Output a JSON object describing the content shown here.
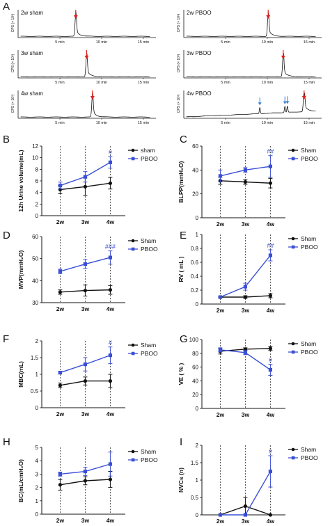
{
  "figure": {
    "panel_letters": [
      "A",
      "B",
      "C",
      "D",
      "E",
      "F",
      "G",
      "H",
      "I"
    ]
  },
  "colors": {
    "sham": "#111111",
    "pboo": "#3a4fd6",
    "annotation": "#3a4fd6",
    "red_arrow": "#e0201b",
    "blue_arrow": "#3a7fd0",
    "trace": "#111111"
  },
  "traces": {
    "x_ticks": [
      "5 min",
      "10 min",
      "15 min"
    ],
    "x_range": [
      0,
      16
    ],
    "y_axis_label": "CPS (× 10³)",
    "items": [
      {
        "label": "2w sham",
        "peak_min": 6.9,
        "red_arrow_min": 6.9,
        "blue_arrows_min": []
      },
      {
        "label": "2w PBOO",
        "peak_min": 10.1,
        "red_arrow_min": 10.1,
        "blue_arrows_min": []
      },
      {
        "label": "3w sham",
        "peak_min": 8.2,
        "red_arrow_min": 8.2,
        "blue_arrows_min": []
      },
      {
        "label": "3w PBOO",
        "peak_min": 11.9,
        "red_arrow_min": 11.9,
        "blue_arrows_min": []
      },
      {
        "label": "4w sham",
        "peak_min": 8.9,
        "red_arrow_min": 8.9,
        "blue_arrows_min": []
      },
      {
        "label": "4w PBOO",
        "peak_min": 14.4,
        "red_arrow_min": 14.4,
        "blue_arrows_min": [
          9.1,
          12.1,
          12.4
        ]
      }
    ]
  },
  "chart_data": [
    {
      "panel": "B",
      "type": "line",
      "ylabel": "12h Urine volume(mL)",
      "categories": [
        "2w",
        "3w",
        "4w"
      ],
      "ylim": [
        0,
        12
      ],
      "yticks": [
        0,
        2,
        4,
        6,
        8,
        10,
        12
      ],
      "legend": [
        "sham",
        "PBOO"
      ],
      "legend_position": "top-right",
      "series": [
        {
          "name": "sham",
          "values": [
            4.5,
            5.0,
            5.6
          ],
          "errors": [
            0.7,
            1.5,
            1.0
          ]
        },
        {
          "name": "PBOO",
          "values": [
            5.2,
            6.7,
            9.2
          ],
          "errors": [
            0.6,
            0.9,
            1.0
          ]
        }
      ],
      "annotation": {
        "text": "#",
        "category": "4w"
      }
    },
    {
      "panel": "C",
      "type": "line",
      "ylabel": "BLPP(mmH₂O)",
      "categories": [
        "2w",
        "3w",
        "4w"
      ],
      "ylim": [
        0,
        60
      ],
      "yticks": [
        0,
        20,
        40,
        60
      ],
      "legend": [
        "Sham",
        "PBOO"
      ],
      "legend_position": "top-right",
      "series": [
        {
          "name": "Sham",
          "values": [
            31,
            30,
            29
          ],
          "errors": [
            3,
            2,
            4
          ]
        },
        {
          "name": "PBOO",
          "values": [
            35,
            40,
            43
          ],
          "errors": [
            5,
            2,
            9
          ]
        }
      ],
      "annotation": {
        "text": "##",
        "category": "4w"
      }
    },
    {
      "panel": "D",
      "type": "line",
      "ylabel": "MVP(mmH₂O)",
      "categories": [
        "2w",
        "3w",
        "4w"
      ],
      "ylim": [
        30,
        60
      ],
      "yticks": [
        30,
        40,
        50,
        60
      ],
      "legend": [
        "Sham",
        "PBOO"
      ],
      "legend_position": "top-right",
      "series": [
        {
          "name": "Sham",
          "values": [
            34.8,
            35.5,
            35.8
          ],
          "errors": [
            1.0,
            2.5,
            2.0
          ]
        },
        {
          "name": "PBOO",
          "values": [
            44.2,
            47.5,
            50.5
          ],
          "errors": [
            1.0,
            2.0,
            3.0
          ]
        }
      ],
      "annotation": {
        "text": "###",
        "category": "4w"
      }
    },
    {
      "panel": "E",
      "type": "line",
      "ylabel": "RV ( mL )",
      "categories": [
        "2w",
        "3w",
        "4w"
      ],
      "ylim": [
        0,
        1.0
      ],
      "yticks": [
        0,
        0.2,
        0.4,
        0.6,
        0.8,
        1.0
      ],
      "legend": [
        "Sham",
        "PBOO"
      ],
      "legend_position": "top-right",
      "series": [
        {
          "name": "Sham",
          "values": [
            0.1,
            0.1,
            0.12
          ],
          "errors": [
            0.01,
            0.02,
            0.03
          ]
        },
        {
          "name": "PBOO",
          "values": [
            0.1,
            0.25,
            0.7
          ],
          "errors": [
            0.01,
            0.05,
            0.08
          ]
        }
      ],
      "annotation": {
        "text": "##",
        "category": "4w"
      }
    },
    {
      "panel": "F",
      "type": "line",
      "ylabel": "MBC(mL)",
      "categories": [
        "2w",
        "3w",
        "4w"
      ],
      "ylim": [
        0,
        2.0
      ],
      "yticks": [
        0,
        0.5,
        1.0,
        1.5,
        2.0
      ],
      "legend": [
        "Sham",
        "PBOO"
      ],
      "legend_position": "top-right",
      "series": [
        {
          "name": "Sham",
          "values": [
            0.67,
            0.8,
            0.8
          ],
          "errors": [
            0.07,
            0.12,
            0.2
          ]
        },
        {
          "name": "PBOO",
          "values": [
            1.05,
            1.3,
            1.57
          ],
          "errors": [
            0.04,
            0.2,
            0.25
          ]
        }
      ],
      "annotation": {
        "text": "#",
        "category": "4w"
      }
    },
    {
      "panel": "G",
      "type": "line",
      "ylabel": "VE ( % )",
      "categories": [
        "2w",
        "3w",
        "4w"
      ],
      "ylim": [
        0,
        100
      ],
      "yticks": [
        0,
        20,
        40,
        60,
        80,
        100
      ],
      "legend": [
        "Sham",
        "PBOO"
      ],
      "legend_position": "top-right",
      "series": [
        {
          "name": "Sham",
          "values": [
            83,
            86,
            87
          ],
          "errors": [
            4,
            2,
            3
          ]
        },
        {
          "name": "PBOO",
          "values": [
            85,
            81,
            56
          ],
          "errors": [
            3,
            3,
            8
          ]
        }
      ],
      "annotation": {
        "text": "#",
        "category": "4w"
      }
    },
    {
      "panel": "H",
      "type": "line",
      "ylabel": "BC(mL/cmH₂O)",
      "categories": [
        "2w",
        "3w",
        "4w"
      ],
      "ylim": [
        0,
        5
      ],
      "yticks": [
        0,
        1,
        2,
        3,
        4,
        5
      ],
      "legend": [
        "Sham",
        "PBOO"
      ],
      "legend_position": "top-right",
      "series": [
        {
          "name": "Sham",
          "values": [
            2.2,
            2.5,
            2.6
          ],
          "errors": [
            0.4,
            0.3,
            0.6
          ]
        },
        {
          "name": "PBOO",
          "values": [
            3.0,
            3.2,
            3.75
          ],
          "errors": [
            0.15,
            0.3,
            0.9
          ]
        }
      ],
      "annotation": null
    },
    {
      "panel": "I",
      "type": "line",
      "ylabel": "NVCs (n)",
      "categories": [
        "2w",
        "3w",
        "4w"
      ],
      "ylim": [
        0,
        2.0
      ],
      "yticks": [
        0,
        0.5,
        1.0,
        1.5,
        2.0
      ],
      "legend": [
        "Sham",
        "PBOO"
      ],
      "legend_position": "top-right",
      "series": [
        {
          "name": "Sham",
          "values": [
            0,
            0.25,
            0
          ],
          "errors": [
            0,
            0.25,
            0
          ]
        },
        {
          "name": "PBOO",
          "values": [
            0,
            0,
            1.25
          ],
          "errors": [
            0,
            0,
            0.45
          ]
        }
      ],
      "annotation": {
        "text": "#",
        "category": "4w"
      }
    }
  ]
}
